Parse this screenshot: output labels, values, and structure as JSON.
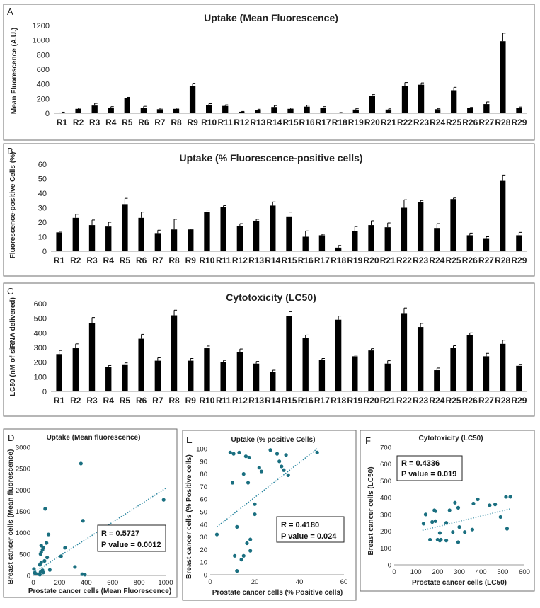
{
  "panels": [
    {
      "letter": "A",
      "title": "Uptake (Mean Fluorescence)",
      "ylabel": "Mean Fluorescence (A.U.)"
    },
    {
      "letter": "B",
      "title": "Uptake (% Fluorescence-positive cells)",
      "ylabel": "Fluorescence-positive Cells (%)"
    },
    {
      "letter": "C",
      "title": "Cytotoxicity (LC50)",
      "ylabel": "LC50 (nM of siRNA delivered)"
    },
    {
      "letter": "D",
      "title": "Uptake (Mean fluorescence)",
      "xlabel": "Prostate cancer cells (Mean Fluorescence)",
      "ylabel": "Breast cancer cells (Mean fluorescence)",
      "r_text": "R = 0.5727",
      "p_text": "P value = 0.0012"
    },
    {
      "letter": "E",
      "title": "Uptake (% positive Cells)",
      "xlabel": "Prostate cancer cells (% Positive cells)",
      "ylabel": "Breast cancer cells (% Positive cells)",
      "r_text": "R = 0.4180",
      "p_text": "P value = 0.024"
    },
    {
      "letter": "F",
      "title": "Cytotoxicity (LC50)",
      "xlabel": "Prostate cancer cells (LC50)",
      "ylabel": "Breast cancer cells (LC50)",
      "r_text": "R = 0.4336",
      "p_text": "P value = 0.019"
    }
  ],
  "colors": {
    "bar": "#000000",
    "scatter": "#1a6f80",
    "trend": "#2a86a0"
  },
  "chart_data": [
    {
      "type": "bar",
      "title": "Uptake (Mean Fluorescence)",
      "ylabel": "Mean Fluorescence (A.U.)",
      "ylim": [
        0,
        1200
      ],
      "yticks": [
        0,
        200,
        400,
        600,
        800,
        1000,
        1200
      ],
      "categories": [
        "R1",
        "R2",
        "R3",
        "R4",
        "R5",
        "R6",
        "R7",
        "R8",
        "R9",
        "R10",
        "R11",
        "R12",
        "R13",
        "R14",
        "R15",
        "R16",
        "R17",
        "R18",
        "R19",
        "R20",
        "R21",
        "R22",
        "R23",
        "R24",
        "R25",
        "R26",
        "R27",
        "R28",
        "R29"
      ],
      "values": [
        10,
        60,
        105,
        70,
        210,
        75,
        55,
        60,
        375,
        115,
        100,
        20,
        45,
        85,
        60,
        90,
        75,
        5,
        50,
        240,
        50,
        370,
        390,
        55,
        315,
        70,
        125,
        985,
        70
      ],
      "errors": [
        5,
        10,
        30,
        20,
        8,
        20,
        15,
        10,
        35,
        15,
        15,
        5,
        10,
        20,
        10,
        20,
        15,
        5,
        15,
        15,
        10,
        50,
        25,
        10,
        40,
        10,
        30,
        110,
        15
      ]
    },
    {
      "type": "bar",
      "title": "Uptake (% Fluorescence-positive cells)",
      "ylabel": "Fluorescence-positive Cells (%)",
      "ylim": [
        0,
        60
      ],
      "yticks": [
        0,
        10,
        20,
        30,
        40,
        50,
        60
      ],
      "categories": [
        "R1",
        "R2",
        "R3",
        "R4",
        "R5",
        "R6",
        "R7",
        "R8",
        "R9",
        "R10",
        "R11",
        "R12",
        "R13",
        "R14",
        "R15",
        "R16",
        "R17",
        "R18",
        "R19",
        "R20",
        "R21",
        "R22",
        "R23",
        "R24",
        "R25",
        "R26",
        "R27",
        "R28",
        "R29"
      ],
      "values": [
        13,
        23,
        18,
        17,
        32.5,
        23,
        12.5,
        15,
        15,
        27,
        30.5,
        17.5,
        21,
        31.5,
        24,
        10,
        11,
        2.5,
        14,
        18,
        16.5,
        30,
        34,
        16,
        36,
        11,
        9,
        48.5,
        11
      ],
      "errors": [
        0.7,
        2.5,
        3.5,
        3,
        4,
        4,
        2,
        7,
        0.3,
        1.5,
        1,
        1.5,
        1,
        2.5,
        3,
        4,
        0.7,
        1.5,
        3,
        3,
        3,
        5.5,
        1,
        3,
        0.7,
        1.5,
        1,
        4,
        2
      ]
    },
    {
      "type": "bar",
      "title": "Cytotoxicity (LC50)",
      "ylabel": "LC50 (nM of siRNA delivered)",
      "ylim": [
        0,
        600
      ],
      "yticks": [
        0,
        100,
        200,
        300,
        400,
        500,
        600
      ],
      "categories": [
        "R1",
        "R2",
        "R3",
        "R4",
        "R5",
        "R6",
        "R7",
        "R8",
        "R9",
        "R10",
        "R11",
        "R12",
        "R13",
        "R14",
        "R15",
        "R16",
        "R17",
        "R18",
        "R19",
        "R20",
        "R21",
        "R22",
        "R23",
        "R24",
        "R25",
        "R26",
        "R27",
        "R28",
        "R29"
      ],
      "values": [
        255,
        295,
        465,
        165,
        185,
        360,
        210,
        520,
        210,
        295,
        200,
        270,
        190,
        135,
        515,
        365,
        215,
        490,
        240,
        280,
        190,
        535,
        440,
        145,
        300,
        385,
        240,
        325,
        175
      ],
      "errors": [
        25,
        30,
        40,
        12,
        10,
        30,
        20,
        35,
        15,
        15,
        12,
        20,
        15,
        10,
        30,
        20,
        10,
        25,
        8,
        12,
        20,
        35,
        25,
        15,
        12,
        15,
        20,
        25,
        10
      ]
    },
    {
      "type": "scatter",
      "title": "Uptake (Mean fluorescence)",
      "xlabel": "Prostate cancer cells (Mean Fluorescence)",
      "ylabel": "Breast cancer cells (Mean fluorescence)",
      "xlim": [
        0,
        1000
      ],
      "ylim": [
        0,
        3000
      ],
      "xticks": [
        0,
        200,
        400,
        600,
        800,
        1000
      ],
      "yticks": [
        0,
        500,
        1000,
        1500,
        2000,
        2500,
        3000
      ],
      "x": [
        360,
        985,
        375,
        115,
        100,
        60,
        75,
        70,
        210,
        240,
        90,
        60,
        55,
        5,
        10,
        20,
        45,
        50,
        85,
        105,
        315,
        370,
        390,
        55,
        70,
        60,
        125,
        50,
        75
      ],
      "y": [
        2620,
        1770,
        1280,
        960,
        760,
        700,
        650,
        600,
        450,
        650,
        1560,
        540,
        500,
        150,
        60,
        40,
        30,
        20,
        340,
        420,
        200,
        30,
        20,
        80,
        120,
        300,
        130,
        250,
        70
      ],
      "trend": [
        [
          0,
          60
        ],
        [
          1000,
          2040
        ]
      ],
      "r": 0.5727,
      "p": 0.0012
    },
    {
      "type": "scatter",
      "title": "Uptake (% positive Cells)",
      "xlabel": "Prostate cancer cells (% Positive cells)",
      "ylabel": "Breast cancer cells (% Positive cells)",
      "xlim": [
        0,
        60
      ],
      "ylim": [
        0,
        100
      ],
      "xticks": [
        0,
        20,
        40,
        60
      ],
      "yticks": [
        0,
        10,
        20,
        30,
        40,
        50,
        60,
        70,
        80,
        90,
        100
      ],
      "x": [
        3,
        9,
        10,
        10.5,
        12,
        13,
        15,
        16,
        17,
        17.5,
        18,
        20,
        20,
        22,
        23,
        27,
        30,
        31,
        32,
        33,
        34,
        35,
        48,
        11,
        12,
        14,
        15,
        16.5,
        18
      ],
      "y": [
        32,
        97,
        73,
        96,
        38,
        97,
        80,
        94,
        73,
        93,
        28,
        48,
        56,
        85,
        82,
        99,
        96,
        90,
        86,
        83,
        95,
        79,
        97,
        15,
        3,
        12,
        15,
        25,
        19
      ],
      "trend": [
        [
          3,
          38
        ],
        [
          48,
          100
        ]
      ],
      "r": 0.418,
      "p": 0.024
    },
    {
      "type": "scatter",
      "title": "Cytotoxicity (LC50)",
      "xlabel": "Prostate cancer cells (LC50)",
      "ylabel": "Breast cancer cells (LC50)",
      "xlim": [
        0,
        600
      ],
      "ylim": [
        0,
        700
      ],
      "xticks": [
        0,
        100,
        200,
        300,
        400,
        500,
        600
      ],
      "yticks": [
        0,
        100,
        200,
        300,
        400,
        500,
        600,
        700
      ],
      "x": [
        135,
        145,
        165,
        175,
        185,
        190,
        190,
        200,
        210,
        210,
        215,
        240,
        240,
        255,
        270,
        280,
        295,
        295,
        300,
        325,
        360,
        365,
        385,
        440,
        465,
        490,
        515,
        520,
        535
      ],
      "y": [
        245,
        300,
        150,
        255,
        325,
        320,
        260,
        150,
        145,
        190,
        150,
        250,
        145,
        325,
        195,
        370,
        135,
        340,
        225,
        195,
        210,
        365,
        390,
        355,
        360,
        285,
        405,
        215,
        405
      ],
      "trend": [
        [
          130,
          205
        ],
        [
          540,
          335
        ]
      ],
      "r": 0.4336,
      "p": 0.019
    }
  ]
}
